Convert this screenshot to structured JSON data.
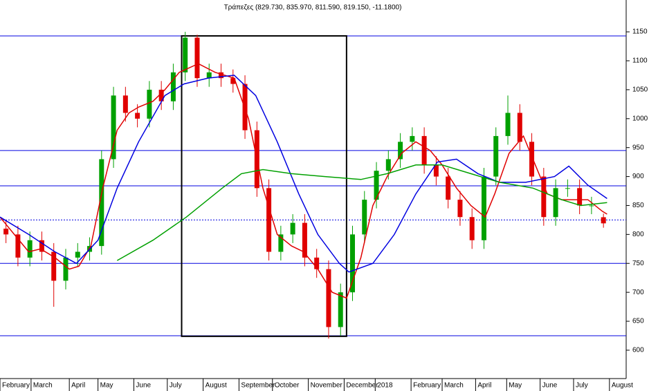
{
  "chart_data": {
    "type": "candlestick",
    "title": "Τράπεζες (829.730, 835.970, 811.590, 819.150, -11.1800)",
    "xlim": [
      0,
      262
    ],
    "ylim": [
      551,
      1205
    ],
    "yticks": [
      600,
      650,
      700,
      750,
      800,
      850,
      900,
      950,
      1000,
      1050,
      1100,
      1150
    ],
    "xticks": [
      {
        "value": 0,
        "label": "February"
      },
      {
        "value": 13,
        "label": "March"
      },
      {
        "value": 29,
        "label": "April"
      },
      {
        "value": 41,
        "label": "May"
      },
      {
        "value": 56,
        "label": "June"
      },
      {
        "value": 70,
        "label": "July"
      },
      {
        "value": 85,
        "label": "August"
      },
      {
        "value": 100,
        "label": "September"
      },
      {
        "value": 114,
        "label": "October"
      },
      {
        "value": 129,
        "label": "November"
      },
      {
        "value": 144,
        "label": "December"
      },
      {
        "value": 157,
        "label": "2018"
      },
      {
        "value": 172,
        "label": "February"
      },
      {
        "value": 185,
        "label": "March"
      },
      {
        "value": 199,
        "label": "April"
      },
      {
        "value": 212,
        "label": "May"
      },
      {
        "value": 226,
        "label": "June"
      },
      {
        "value": 240,
        "label": "July"
      },
      {
        "value": 255,
        "label": "August"
      }
    ],
    "up_color": "#00a000",
    "down_color": "#e00000",
    "candles": {
      "x": [
        2.5,
        7.5,
        12.5,
        17.5,
        22.5,
        27.5,
        32.5,
        37.5,
        42.5,
        47.5,
        52.5,
        57.5,
        62.5,
        67.5,
        72.5,
        77.5,
        82.5,
        87.5,
        92.5,
        97.5,
        102.5,
        107.5,
        112.5,
        117.5,
        122.5,
        127.5,
        132.5,
        137.5,
        142.5,
        147.5,
        152.5,
        157.5,
        162.5,
        167.5,
        172.5,
        177.5,
        182.5,
        187.5,
        192.5,
        197.5,
        202.5,
        207.5,
        212.5,
        217.5,
        222.5,
        227.5,
        232.5,
        237.5,
        242.5,
        247.5,
        252.5
      ],
      "open": [
        810,
        800,
        760,
        790,
        770,
        720,
        760,
        770,
        780,
        930,
        1040,
        1010,
        1000,
        1050,
        1030,
        1080,
        1140,
        1070,
        1080,
        1070,
        1060,
        980,
        880,
        770,
        800,
        820,
        760,
        740,
        640,
        700,
        800,
        860,
        910,
        930,
        960,
        970,
        920,
        900,
        860,
        830,
        790,
        900,
        970,
        1010,
        960,
        900,
        830,
        880,
        880,
        850,
        829.73
      ],
      "high": [
        825,
        815,
        805,
        805,
        785,
        775,
        785,
        795,
        945,
        1055,
        1055,
        1025,
        1065,
        1065,
        1095,
        1150,
        1145,
        1095,
        1095,
        1085,
        1075,
        995,
        895,
        815,
        835,
        835,
        775,
        755,
        715,
        815,
        875,
        925,
        945,
        975,
        985,
        985,
        935,
        915,
        875,
        845,
        915,
        985,
        1040,
        1025,
        975,
        915,
        895,
        895,
        895,
        865,
        835.97
      ],
      "low": [
        785,
        745,
        745,
        755,
        675,
        705,
        745,
        755,
        765,
        915,
        995,
        985,
        985,
        1015,
        1015,
        1065,
        1055,
        1055,
        1055,
        1045,
        965,
        865,
        755,
        755,
        785,
        745,
        725,
        620,
        625,
        685,
        785,
        845,
        895,
        915,
        945,
        905,
        885,
        845,
        815,
        775,
        775,
        885,
        955,
        945,
        885,
        815,
        815,
        865,
        835,
        835,
        811.59
      ],
      "close": [
        800,
        760,
        790,
        770,
        720,
        760,
        770,
        780,
        930,
        1040,
        1010,
        1000,
        1050,
        1030,
        1080,
        1140,
        1070,
        1080,
        1070,
        1060,
        980,
        880,
        770,
        800,
        820,
        760,
        740,
        640,
        700,
        800,
        860,
        910,
        930,
        960,
        970,
        920,
        900,
        860,
        830,
        790,
        900,
        970,
        1010,
        960,
        900,
        830,
        880,
        880,
        850,
        850,
        819.15
      ]
    },
    "series": [
      {
        "color": "#e00000",
        "x": [
          0,
          6,
          12,
          17,
          23,
          29,
          33,
          38,
          43,
          49,
          54,
          58,
          64,
          69,
          75,
          83,
          90,
          98,
          104,
          110,
          116,
          122,
          127,
          133,
          139,
          145,
          151,
          156,
          162,
          168,
          174,
          180,
          185,
          191,
          197,
          203,
          207,
          213,
          219,
          224,
          229,
          235,
          240,
          246,
          252,
          254
        ],
        "values": [
          830,
          800,
          770,
          775,
          760,
          740,
          745,
          780,
          880,
          980,
          1010,
          1020,
          1030,
          1050,
          1080,
          1095,
          1080,
          1070,
          1000,
          880,
          800,
          780,
          770,
          740,
          700,
          690,
          760,
          850,
          900,
          940,
          960,
          945,
          920,
          880,
          850,
          830,
          870,
          940,
          970,
          920,
          870,
          860,
          860,
          860,
          840,
          835
        ]
      },
      {
        "color": "#0000e0",
        "x": [
          0,
          12,
          23,
          32,
          41,
          49,
          58,
          69,
          77,
          87,
          98,
          107,
          116,
          125,
          133,
          142,
          146,
          156,
          165,
          174,
          183,
          191,
          200,
          209,
          220,
          232,
          238,
          246,
          254
        ],
        "values": [
          830,
          800,
          770,
          750,
          790,
          880,
          960,
          1040,
          1060,
          1070,
          1075,
          1040,
          960,
          870,
          800,
          750,
          735,
          750,
          800,
          870,
          925,
          930,
          905,
          890,
          890,
          900,
          918,
          885,
          862
        ]
      },
      {
        "color": "#00a000",
        "x": [
          49,
          64,
          78,
          93,
          101,
          110,
          122,
          136,
          151,
          162,
          174,
          185,
          197,
          209,
          223,
          235,
          243,
          254
        ],
        "values": [
          755,
          790,
          830,
          880,
          905,
          912,
          905,
          900,
          895,
          905,
          920,
          920,
          905,
          890,
          880,
          860,
          850,
          855
        ]
      }
    ],
    "hlines": [
      {
        "value": 1143,
        "color": "#0000e0",
        "dashed": false
      },
      {
        "value": 945,
        "color": "#0000e0",
        "dashed": false
      },
      {
        "value": 884,
        "color": "#0000e0",
        "dashed": false
      },
      {
        "value": 825,
        "color": "#0000e0",
        "dashed": true
      },
      {
        "value": 750,
        "color": "#0000e0",
        "dashed": false
      },
      {
        "value": 625,
        "color": "#0000e0",
        "dashed": false
      }
    ],
    "box": {
      "x": [
        76,
        145
      ],
      "y": [
        624,
        1143
      ],
      "color": "#000000"
    }
  }
}
